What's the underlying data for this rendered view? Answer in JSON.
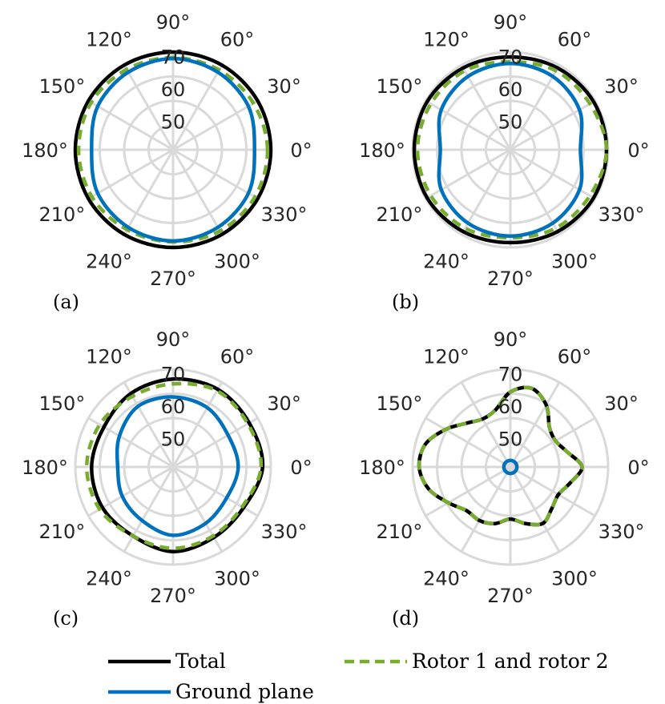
{
  "colors": {
    "total": "#000000",
    "ground_plane": "#0072BD",
    "rotors": "#77AC30",
    "grid": "#D9D9D9",
    "text": "#262626"
  },
  "legend": {
    "total": "Total",
    "rotors": "Rotor 1 and rotor 2",
    "ground_plane": "Ground plane"
  },
  "chart_data": [
    {
      "type": "polar-line",
      "panel_label": "(a)",
      "theta_labels": [
        "0°",
        "30°",
        "60°",
        "90°",
        "120°",
        "150°",
        "180°",
        "210°",
        "240°",
        "270°",
        "300°",
        "330°"
      ],
      "r_ticks": [
        "50",
        "60",
        "70"
      ],
      "rlim": [
        45,
        75
      ],
      "theta_deg": [
        0,
        30,
        60,
        90,
        120,
        150,
        180,
        210,
        240,
        270,
        300,
        330
      ],
      "series": [
        {
          "name": "Total",
          "style": "solid",
          "values": [
            75,
            75,
            75,
            75,
            75,
            75,
            75,
            75,
            75,
            75,
            75,
            75
          ]
        },
        {
          "name": "Rotor 1 and rotor 2",
          "style": "dashed",
          "values": [
            74,
            73.5,
            73.3,
            73.3,
            73.5,
            74,
            74,
            73.8,
            73.3,
            73.3,
            73.8,
            74
          ]
        },
        {
          "name": "Ground plane",
          "style": "solid",
          "values": [
            70,
            71.7,
            72.5,
            73,
            72.5,
            71.7,
            70,
            71.7,
            72.5,
            73,
            72.5,
            71.7
          ]
        }
      ]
    },
    {
      "type": "polar-line",
      "panel_label": "(b)",
      "theta_labels": [
        "0°",
        "30°",
        "60°",
        "90°",
        "120°",
        "150°",
        "180°",
        "210°",
        "240°",
        "270°",
        "300°",
        "330°"
      ],
      "r_ticks": [
        "50",
        "60",
        "70"
      ],
      "rlim": [
        45,
        75
      ],
      "theta_deg": [
        0,
        30,
        60,
        90,
        120,
        150,
        180,
        210,
        240,
        270,
        300,
        330
      ],
      "series": [
        {
          "name": "Total",
          "style": "solid",
          "values": [
            74.5,
            74.5,
            74,
            73.5,
            74,
            74.5,
            74.5,
            74.5,
            74,
            73.5,
            74,
            74.5
          ]
        },
        {
          "name": "Rotor 1 and rotor 2",
          "style": "dashed",
          "values": [
            74.5,
            73.2,
            73,
            72,
            73,
            73.2,
            73.5,
            73.2,
            72.8,
            72,
            72.8,
            73.2
          ]
        },
        {
          "name": "Ground plane",
          "style": "solid",
          "values": [
            66.5,
            69.5,
            71,
            71.5,
            71,
            69.5,
            66.5,
            69.5,
            71,
            71.5,
            71,
            69.5
          ]
        }
      ]
    },
    {
      "type": "polar-line",
      "panel_label": "(c)",
      "theta_labels": [
        "0°",
        "30°",
        "60°",
        "90°",
        "120°",
        "150°",
        "180°",
        "210°",
        "240°",
        "270°",
        "300°",
        "330°"
      ],
      "r_ticks": [
        "50",
        "60",
        "70"
      ],
      "rlim": [
        45,
        75
      ],
      "theta_deg": [
        0,
        30,
        60,
        90,
        120,
        150,
        180,
        210,
        240,
        270,
        300,
        330
      ],
      "series": [
        {
          "name": "Total",
          "style": "solid",
          "values": [
            72.5,
            72,
            72.5,
            72,
            71,
            69.5,
            70,
            70,
            69.5,
            71,
            70,
            70
          ]
        },
        {
          "name": "Rotor 1 and rotor 2",
          "style": "dashed",
          "values": [
            72,
            71.5,
            72,
            70.5,
            70,
            71,
            71.5,
            71,
            69.5,
            70,
            69.5,
            69.5
          ]
        },
        {
          "name": "Ground plane",
          "style": "solid",
          "values": [
            65,
            64.5,
            66,
            66.5,
            66.5,
            64,
            62,
            63,
            64,
            66,
            65,
            64
          ]
        }
      ]
    },
    {
      "type": "polar-line",
      "panel_label": "(d)",
      "theta_labels": [
        "0°",
        "30°",
        "60°",
        "90°",
        "120°",
        "150°",
        "180°",
        "210°",
        "240°",
        "270°",
        "300°",
        "330°"
      ],
      "r_ticks": [
        "50",
        "60",
        "70"
      ],
      "rlim": [
        45,
        75
      ],
      "theta_deg": [
        0,
        15,
        30,
        45,
        60,
        75,
        90,
        105,
        120,
        135,
        150,
        165,
        180,
        195,
        210,
        225,
        240,
        255,
        270,
        285,
        300,
        315,
        330,
        345
      ],
      "series": [
        {
          "name": "Total",
          "style": "solid",
          "values": [
            67,
            63,
            61,
            62,
            67,
            70,
            68,
            63,
            62,
            64,
            68,
            72,
            73,
            71,
            67,
            64,
            64,
            63,
            61,
            63,
            65,
            63,
            62,
            64
          ]
        },
        {
          "name": "Rotor 1 and rotor 2",
          "style": "dashed",
          "values": [
            67,
            63,
            61,
            62,
            67,
            70,
            68,
            63,
            62,
            64,
            68,
            72,
            73,
            71,
            67,
            64,
            64,
            63,
            61,
            63,
            65,
            63,
            62,
            64
          ]
        },
        {
          "name": "Ground plane",
          "style": "solid",
          "values": [
            47,
            47,
            47,
            47,
            47,
            47,
            47,
            47,
            47,
            47,
            47,
            47,
            47,
            47,
            47,
            47,
            47,
            47,
            47,
            47,
            47,
            47,
            47,
            47
          ]
        }
      ]
    }
  ]
}
